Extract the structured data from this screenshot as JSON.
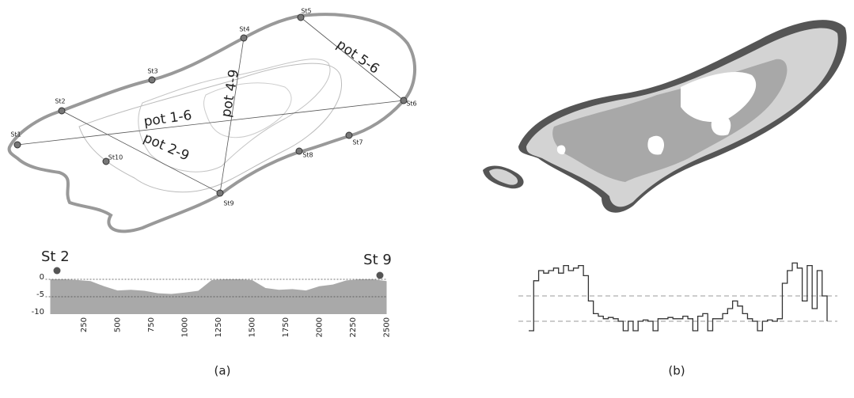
{
  "panel_a": {
    "stations": [
      "St1",
      "St2",
      "St3",
      "St4",
      "St5",
      "St6",
      "St7",
      "St8",
      "St9",
      "St10"
    ],
    "transects": [
      "pot 1-6",
      "pot 2-9",
      "pot 4-9",
      "pot 5-6"
    ],
    "profile": {
      "start_label": "St 2",
      "end_label": "St 9",
      "xlim": [
        0,
        2500
      ],
      "ylim": [
        -10,
        0
      ],
      "xticks": [
        250,
        500,
        750,
        1000,
        1250,
        1500,
        1750,
        2000,
        2250,
        2500
      ],
      "yticks": [
        0,
        -5,
        -10
      ],
      "x": [
        0,
        100,
        200,
        300,
        400,
        500,
        600,
        700,
        800,
        900,
        1000,
        1100,
        1200,
        1300,
        1400,
        1500,
        1600,
        1700,
        1800,
        1900,
        2000,
        2100,
        2200,
        2300,
        2400,
        2500
      ],
      "depth": [
        0,
        0,
        -0.2,
        -0.5,
        -2.0,
        -3.2,
        -3.0,
        -3.3,
        -4.0,
        -4.2,
        -3.8,
        -3.3,
        -0.2,
        0,
        0,
        -0.2,
        -2.5,
        -3.0,
        -2.8,
        -3.2,
        -2.0,
        -1.5,
        -0.3,
        0,
        0,
        -0.5
      ]
    },
    "caption": "(a)"
  },
  "panel_b": {
    "profile": {
      "reference_levels": [
        0,
        1
      ],
      "values": [
        -0.375,
        1.6,
        2.0,
        1.9,
        2.0,
        2.1,
        1.9,
        2.2,
        2.0,
        2.1,
        2.2,
        1.8,
        0.8,
        0.3,
        0.2,
        0.1,
        0.15,
        0.1,
        0.0,
        -0.375,
        0.0,
        -0.375,
        0.0,
        0.05,
        0.0,
        -0.375,
        0.1,
        0.1,
        0.15,
        0.1,
        0.1,
        0.2,
        0.1,
        -0.375,
        0.2,
        0.3,
        -0.375,
        0.1,
        0.1,
        0.3,
        0.5,
        0.8,
        0.6,
        0.3,
        0.1,
        0.0,
        -0.375,
        0.0,
        0.05,
        0.0,
        0.1,
        1.5,
        2.0,
        2.3,
        2.1,
        0.8,
        2.2,
        0.5,
        2.0,
        1.0,
        0.0
      ]
    },
    "caption": "(b)"
  }
}
